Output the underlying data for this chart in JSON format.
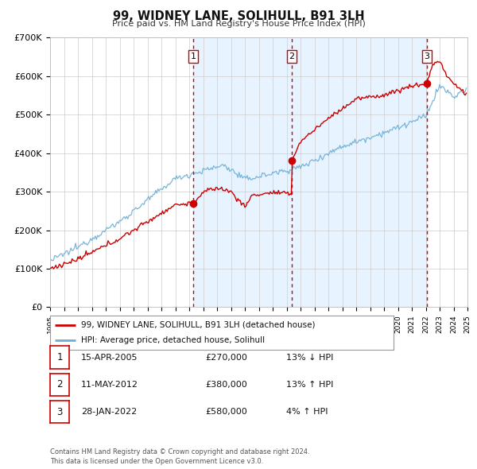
{
  "title": "99, WIDNEY LANE, SOLIHULL, B91 3LH",
  "subtitle": "Price paid vs. HM Land Registry's House Price Index (HPI)",
  "ylim": [
    0,
    700000
  ],
  "yticks": [
    0,
    100000,
    200000,
    300000,
    400000,
    500000,
    600000,
    700000
  ],
  "ytick_labels": [
    "£0",
    "£100K",
    "£200K",
    "£300K",
    "£400K",
    "£500K",
    "£600K",
    "£700K"
  ],
  "x_start_year": 1995,
  "x_end_year": 2025,
  "hpi_color": "#6baed6",
  "price_color": "#cc0000",
  "marker_color": "#cc0000",
  "sale_points": [
    {
      "year": 2005.29,
      "price": 270000,
      "label": "1"
    },
    {
      "year": 2012.37,
      "price": 380000,
      "label": "2"
    },
    {
      "year": 2022.08,
      "price": 580000,
      "label": "3"
    }
  ],
  "vline_color": "#cc0000",
  "shade_color": "#ddeeff",
  "legend_line1": "99, WIDNEY LANE, SOLIHULL, B91 3LH (detached house)",
  "legend_line2": "HPI: Average price, detached house, Solihull",
  "table_rows": [
    {
      "num": "1",
      "date": "15-APR-2005",
      "price": "£270,000",
      "pct": "13% ↓ HPI"
    },
    {
      "num": "2",
      "date": "11-MAY-2012",
      "price": "£380,000",
      "pct": "13% ↑ HPI"
    },
    {
      "num": "3",
      "date": "28-JAN-2022",
      "price": "£580,000",
      "pct": "4% ↑ HPI"
    }
  ],
  "footer": "Contains HM Land Registry data © Crown copyright and database right 2024.\nThis data is licensed under the Open Government Licence v3.0.",
  "background_color": "#ffffff",
  "grid_color": "#cccccc"
}
